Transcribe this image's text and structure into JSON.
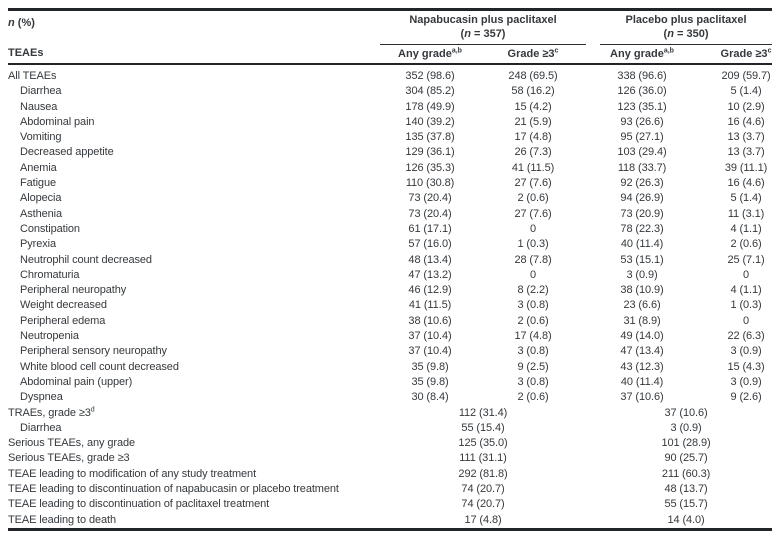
{
  "colors": {
    "text": "#35393d",
    "rule": "#212428"
  },
  "header": {
    "corner_italic": "n",
    "corner_rest": " (%)",
    "corner_bottom": "TEAEs",
    "groups": [
      {
        "title": "Napabucasin plus paclitaxel",
        "n_open": "(",
        "n_italic": "n",
        "n_rest": " = 357)"
      },
      {
        "title": "Placebo plus paclitaxel",
        "n_open": "(",
        "n_italic": "n",
        "n_rest": " = 350)"
      }
    ],
    "sub": {
      "any_label": "Any grade",
      "any_sup": "a,b",
      "g3_label": "Grade ≥3",
      "g3_sup": "c"
    }
  },
  "rows": [
    {
      "label": "All TEAEs",
      "indent": false,
      "sup": "",
      "cells": [
        "352 (98.6)",
        "248 (69.5)",
        "338 (96.6)",
        "209 (59.7)"
      ]
    },
    {
      "label": "Diarrhea",
      "indent": true,
      "sup": "",
      "cells": [
        "304 (85.2)",
        "58 (16.2)",
        "126 (36.0)",
        "5 (1.4)"
      ]
    },
    {
      "label": "Nausea",
      "indent": true,
      "sup": "",
      "cells": [
        "178 (49.9)",
        "15 (4.2)",
        "123 (35.1)",
        "10 (2.9)"
      ]
    },
    {
      "label": "Abdominal pain",
      "indent": true,
      "sup": "",
      "cells": [
        "140 (39.2)",
        "21 (5.9)",
        "93 (26.6)",
        "16 (4.6)"
      ]
    },
    {
      "label": "Vomiting",
      "indent": true,
      "sup": "",
      "cells": [
        "135 (37.8)",
        "17 (4.8)",
        "95 (27.1)",
        "13 (3.7)"
      ]
    },
    {
      "label": "Decreased appetite",
      "indent": true,
      "sup": "",
      "cells": [
        "129 (36.1)",
        "26 (7.3)",
        "103 (29.4)",
        "13 (3.7)"
      ]
    },
    {
      "label": "Anemia",
      "indent": true,
      "sup": "",
      "cells": [
        "126 (35.3)",
        "41 (11.5)",
        "118 (33.7)",
        "39 (11.1)"
      ]
    },
    {
      "label": "Fatigue",
      "indent": true,
      "sup": "",
      "cells": [
        "110 (30.8)",
        "27 (7.6)",
        "92 (26.3)",
        "16 (4.6)"
      ]
    },
    {
      "label": "Alopecia",
      "indent": true,
      "sup": "",
      "cells": [
        "73 (20.4)",
        "2 (0.6)",
        "94 (26.9)",
        "5 (1.4)"
      ]
    },
    {
      "label": "Asthenia",
      "indent": true,
      "sup": "",
      "cells": [
        "73 (20.4)",
        "27 (7.6)",
        "73 (20.9)",
        "11 (3.1)"
      ]
    },
    {
      "label": "Constipation",
      "indent": true,
      "sup": "",
      "cells": [
        "61 (17.1)",
        "0",
        "78 (22.3)",
        "4 (1.1)"
      ]
    },
    {
      "label": "Pyrexia",
      "indent": true,
      "sup": "",
      "cells": [
        "57 (16.0)",
        "1 (0.3)",
        "40 (11.4)",
        "2 (0.6)"
      ]
    },
    {
      "label": "Neutrophil count decreased",
      "indent": true,
      "sup": "",
      "cells": [
        "48 (13.4)",
        "28 (7.8)",
        "53 (15.1)",
        "25 (7.1)"
      ]
    },
    {
      "label": "Chromaturia",
      "indent": true,
      "sup": "",
      "cells": [
        "47 (13.2)",
        "0",
        "3 (0.9)",
        "0"
      ]
    },
    {
      "label": "Peripheral neuropathy",
      "indent": true,
      "sup": "",
      "cells": [
        "46 (12.9)",
        "8 (2.2)",
        "38 (10.9)",
        "4 (1.1)"
      ]
    },
    {
      "label": "Weight decreased",
      "indent": true,
      "sup": "",
      "cells": [
        "41 (11.5)",
        "3 (0.8)",
        "23 (6.6)",
        "1 (0.3)"
      ]
    },
    {
      "label": "Peripheral edema",
      "indent": true,
      "sup": "",
      "cells": [
        "38 (10.6)",
        "2 (0.6)",
        "31 (8.9)",
        "0"
      ]
    },
    {
      "label": "Neutropenia",
      "indent": true,
      "sup": "",
      "cells": [
        "37 (10.4)",
        "17 (4.8)",
        "49 (14.0)",
        "22 (6.3)"
      ]
    },
    {
      "label": "Peripheral sensory neuropathy",
      "indent": true,
      "sup": "",
      "cells": [
        "37 (10.4)",
        "3 (0.8)",
        "47 (13.4)",
        "3 (0.9)"
      ]
    },
    {
      "label": "White blood cell count decreased",
      "indent": true,
      "sup": "",
      "cells": [
        "35 (9.8)",
        "9 (2.5)",
        "43 (12.3)",
        "15 (4.3)"
      ]
    },
    {
      "label": "Abdominal pain (upper)",
      "indent": true,
      "sup": "",
      "cells": [
        "35 (9.8)",
        "3 (0.8)",
        "40 (11.4)",
        "3 (0.9)"
      ]
    },
    {
      "label": "Dyspnea",
      "indent": true,
      "sup": "",
      "cells": [
        "30 (8.4)",
        "2 (0.6)",
        "37 (10.6)",
        "9 (2.6)"
      ]
    },
    {
      "label": "TRAEs, grade ≥3",
      "indent": false,
      "sup": "d",
      "cells": [
        "112 (31.4)",
        "37 (10.6)"
      ]
    },
    {
      "label": "Diarrhea",
      "indent": true,
      "sup": "",
      "cells": [
        "55 (15.4)",
        "3 (0.9)"
      ]
    },
    {
      "label": "Serious TEAEs, any grade",
      "indent": false,
      "sup": "",
      "cells": [
        "125 (35.0)",
        "101 (28.9)"
      ]
    },
    {
      "label": "Serious TEAEs, grade ≥3",
      "indent": false,
      "sup": "",
      "cells": [
        "111 (31.1)",
        "90 (25.7)"
      ]
    },
    {
      "label": "TEAE leading to modification of any study treatment",
      "indent": false,
      "sup": "",
      "cells": [
        "292 (81.8)",
        "211 (60.3)"
      ]
    },
    {
      "label": "TEAE leading to discontinuation of napabucasin or placebo treatment",
      "indent": false,
      "sup": "",
      "cells": [
        "74 (20.7)",
        "48 (13.7)"
      ]
    },
    {
      "label": "TEAE leading to discontinuation of paclitaxel treatment",
      "indent": false,
      "sup": "",
      "cells": [
        "74 (20.7)",
        "55 (15.7)"
      ]
    },
    {
      "label": "TEAE leading to death",
      "indent": false,
      "sup": "",
      "cells": [
        "17 (4.8)",
        "14 (4.0)"
      ]
    }
  ]
}
